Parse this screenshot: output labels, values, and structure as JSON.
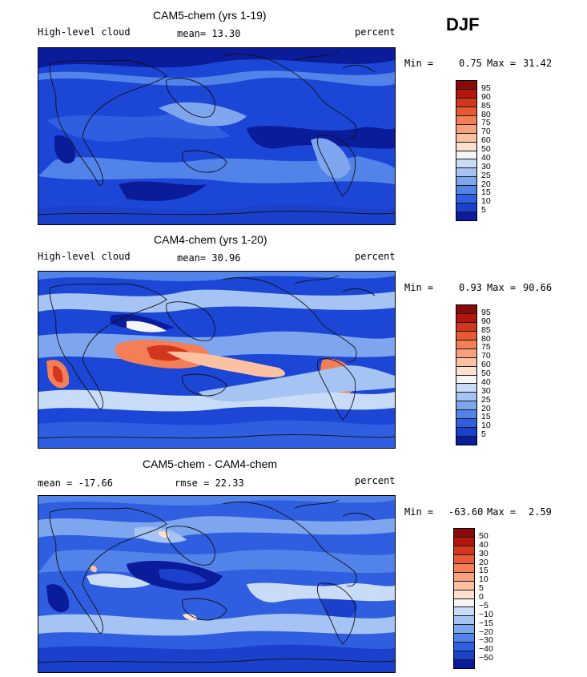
{
  "season": "DJF",
  "colors": {
    "ocean_base": "#1c46d6",
    "coast": "#111111"
  },
  "panels": [
    {
      "title": "CAM5-chem (yrs 1-19)",
      "left": "High-level cloud",
      "center": "mean=  13.30",
      "right": "percent",
      "min_label": "Min =",
      "min": "0.75",
      "max_label": "Max =",
      "max": "31.42",
      "colorbar": {
        "labels": [
          "95",
          "90",
          "85",
          "80",
          "75",
          "70",
          "60",
          "50",
          "40",
          "30",
          "25",
          "20",
          "15",
          "10",
          "5"
        ],
        "colors": [
          "#8a0a0a",
          "#b2160c",
          "#d2361c",
          "#e85a34",
          "#f47f57",
          "#f9a07c",
          "#fcc1a2",
          "#fde0cf",
          "#f5f5f5",
          "#c9dcf7",
          "#a5c4f3",
          "#7ea6ee",
          "#5283e8",
          "#2f5fe0",
          "#1a40cc",
          "#0b1c9a"
        ]
      }
    },
    {
      "title": "CAM4-chem (yrs 1-20)",
      "left": "High-level cloud",
      "center": "mean=  30.96",
      "right": "percent",
      "min_label": "Min =",
      "min": "0.93",
      "max_label": "Max =",
      "max": "90.66",
      "colorbar": {
        "labels": [
          "95",
          "90",
          "85",
          "80",
          "75",
          "70",
          "60",
          "50",
          "40",
          "30",
          "25",
          "20",
          "15",
          "10",
          "5"
        ],
        "colors": [
          "#8a0a0a",
          "#b2160c",
          "#d2361c",
          "#e85a34",
          "#f47f57",
          "#f9a07c",
          "#fcc1a2",
          "#fde0cf",
          "#f5f5f5",
          "#c9dcf7",
          "#a5c4f3",
          "#7ea6ee",
          "#5283e8",
          "#2f5fe0",
          "#1a40cc",
          "#0b1c9a"
        ]
      }
    },
    {
      "title": "CAM5-chem - CAM4-chem",
      "left": "mean = -17.66",
      "center": "rmse =  22.33",
      "right": "percent",
      "min_label": "Min =",
      "min": "-63.60",
      "max_label": "Max =",
      "max": "2.59",
      "colorbar": {
        "labels": [
          "50",
          "40",
          "30",
          "20",
          "15",
          "10",
          "5",
          "0",
          "−5",
          "−10",
          "−15",
          "−20",
          "−30",
          "−40",
          "−50"
        ],
        "colors": [
          "#8a0a0a",
          "#b2160c",
          "#d2361c",
          "#e85a34",
          "#f47f57",
          "#f9a07c",
          "#fcc1a2",
          "#fde0cf",
          "#f5f5f5",
          "#c9dcf7",
          "#a5c4f3",
          "#7ea6ee",
          "#5283e8",
          "#2f5fe0",
          "#1a40cc",
          "#0b1c9a"
        ]
      }
    }
  ]
}
